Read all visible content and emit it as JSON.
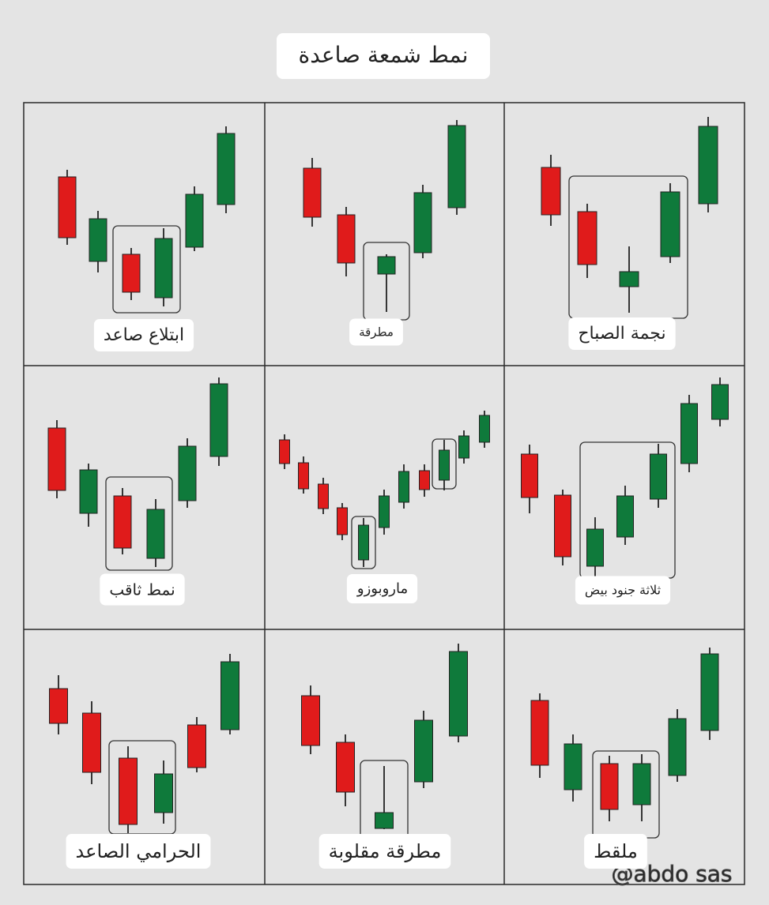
{
  "title": "نمط شمعة صاعدة",
  "panels": [
    {
      "label": "ابتلاع صاعد"
    },
    {
      "label": "مطرقة"
    },
    {
      "label": "نجمة الصباح"
    },
    {
      "label": "نمط ثاقب"
    },
    {
      "label": "ماروبوزو"
    },
    {
      "label": "ثلاثة جنود بيض"
    },
    {
      "label": "الحرامي الصاعد"
    },
    {
      "label": "مطرقة مقلوبة"
    },
    {
      "label": "ملقط"
    }
  ],
  "watermark": "@abdo sas"
}
